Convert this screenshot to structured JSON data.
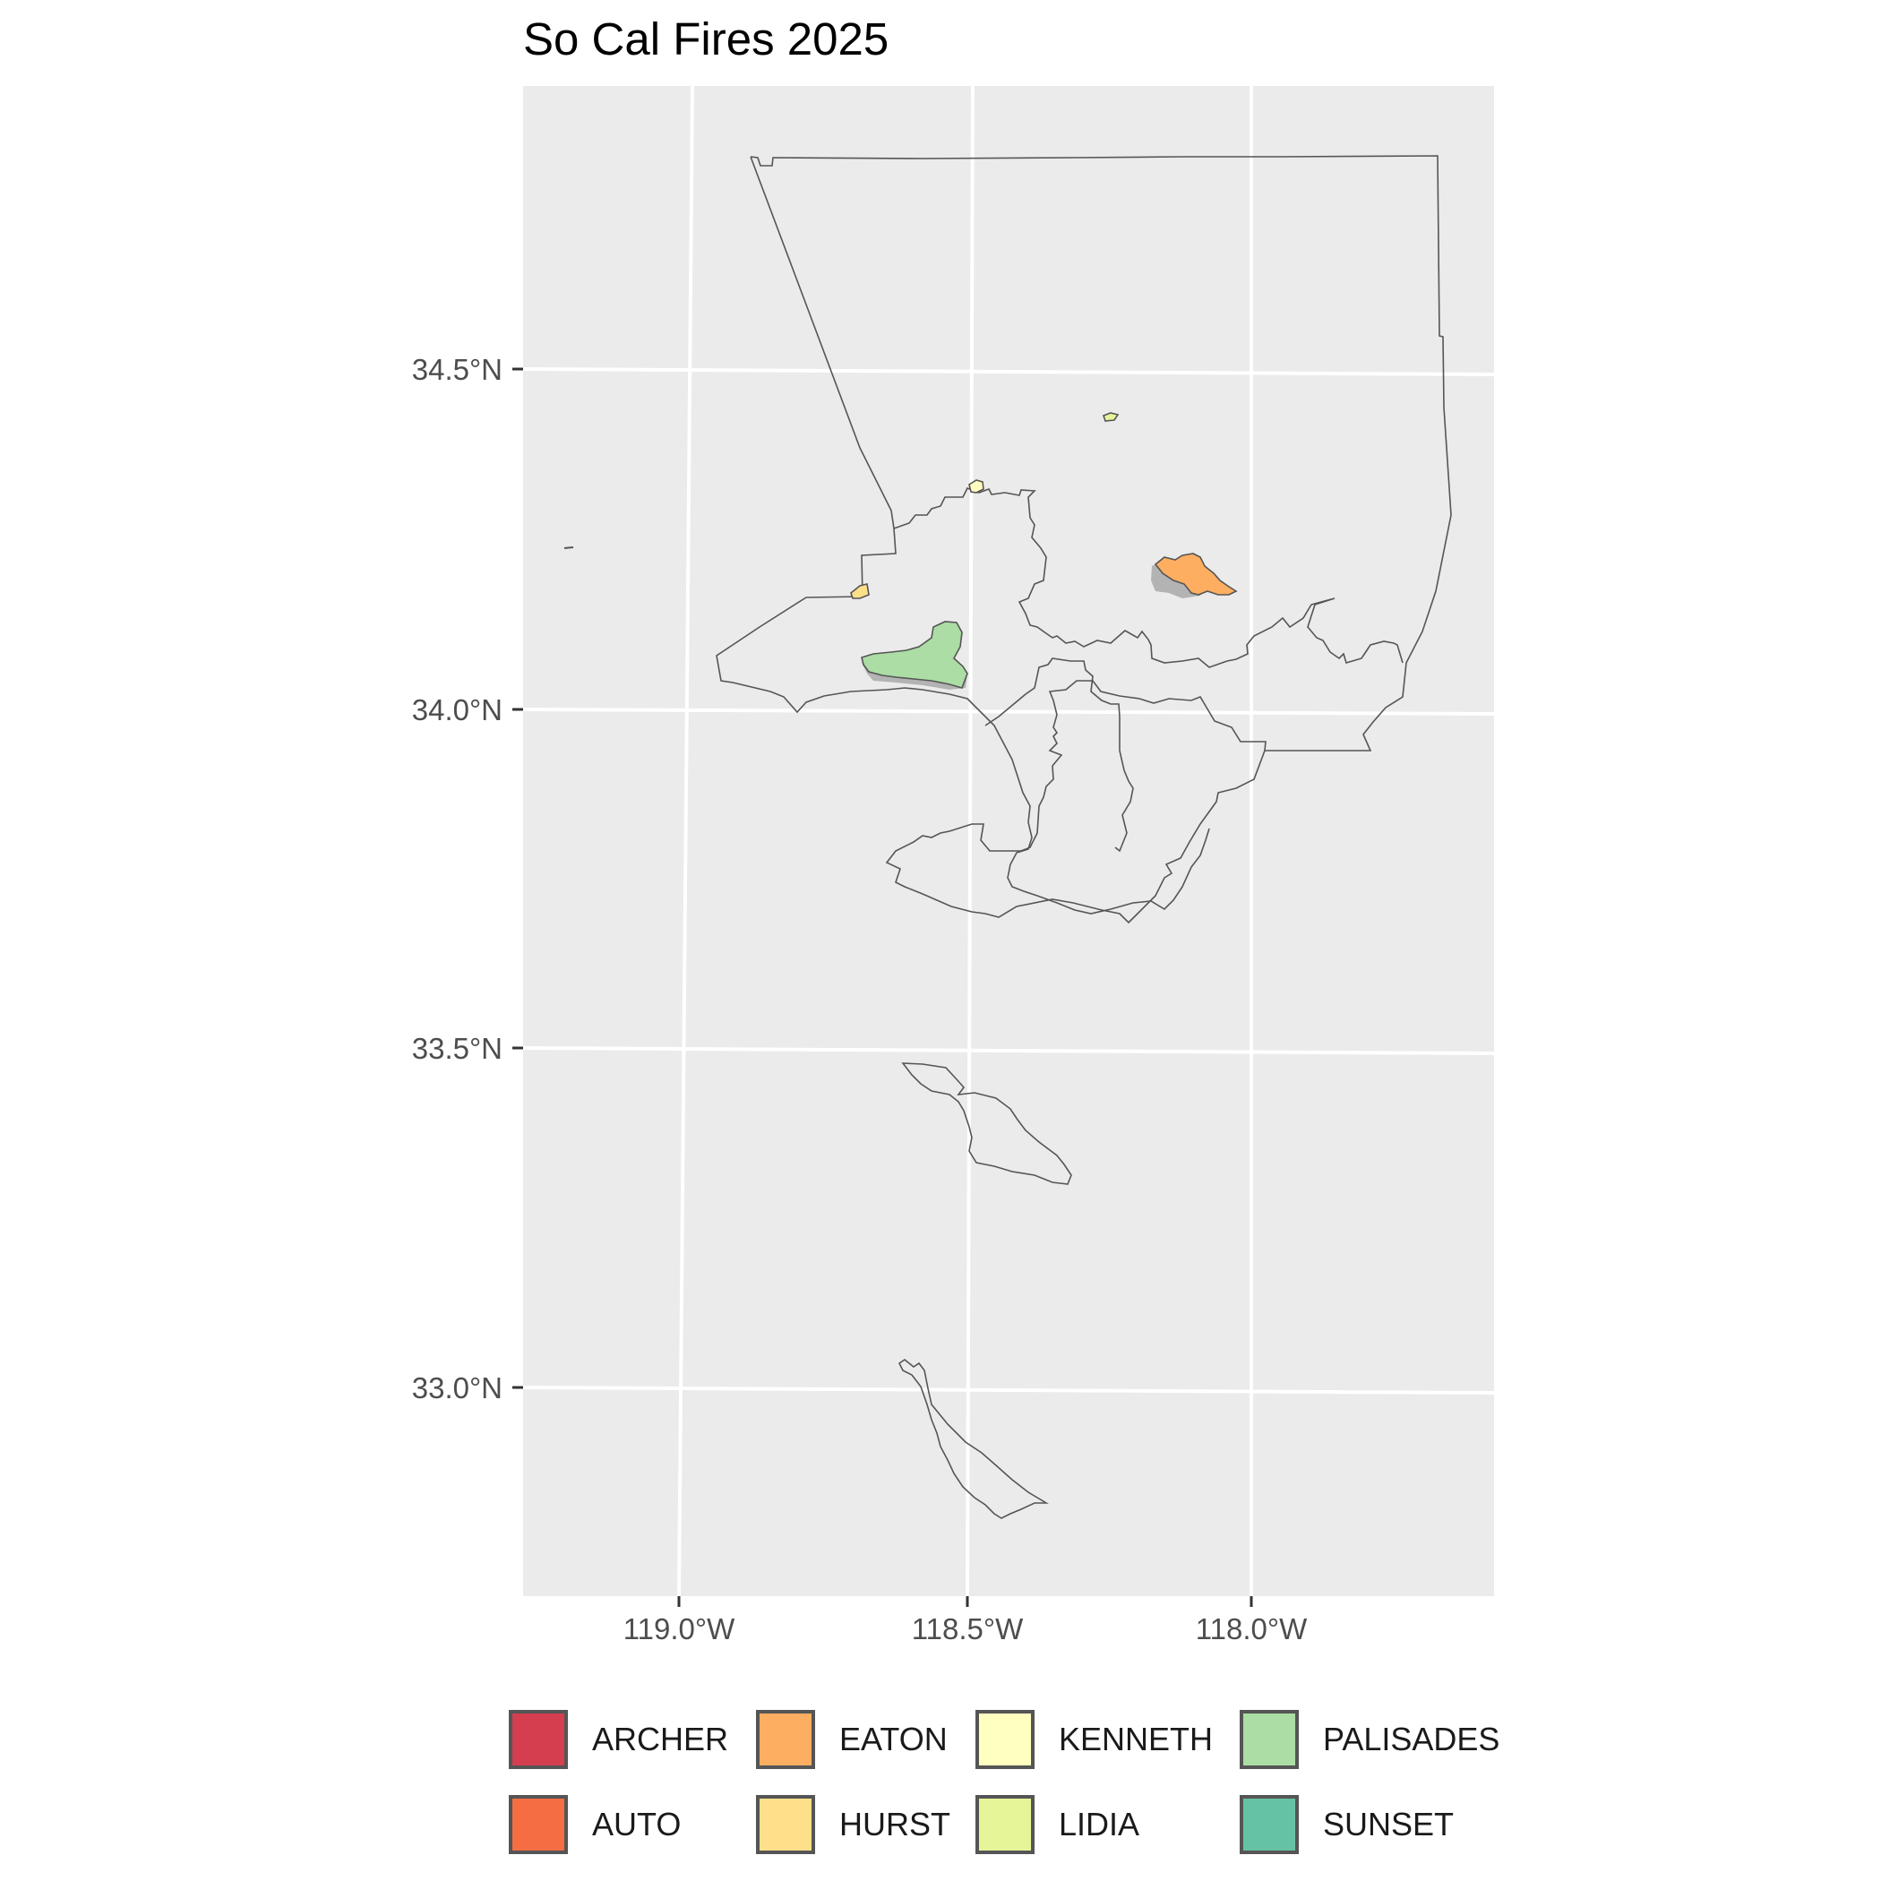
{
  "title": "So Cal Fires 2025",
  "map": {
    "region": "Los Angeles County",
    "panel_background": "#EBEBEB",
    "grid_color": "#FFFFFF",
    "outline_color": "#555555",
    "burned_structures_color": "#B3B3B3",
    "y_ticks": [
      "34.5°N",
      "34.0°N",
      "33.5°N",
      "33.0°N"
    ],
    "x_ticks": [
      "119.0°W",
      "118.5°W",
      "118.0°W"
    ]
  },
  "legend": {
    "items": [
      {
        "label": "ARCHER",
        "color": "#D53E4F"
      },
      {
        "label": "AUTO",
        "color": "#F46D43"
      },
      {
        "label": "EATON",
        "color": "#FDAE61"
      },
      {
        "label": "HURST",
        "color": "#FEE08B"
      },
      {
        "label": "KENNETH",
        "color": "#FFFFBF"
      },
      {
        "label": "LIDIA",
        "color": "#E6F598"
      },
      {
        "label": "PALISADES",
        "color": "#ABDDA4"
      },
      {
        "label": "SUNSET",
        "color": "#66C2A5"
      }
    ]
  }
}
